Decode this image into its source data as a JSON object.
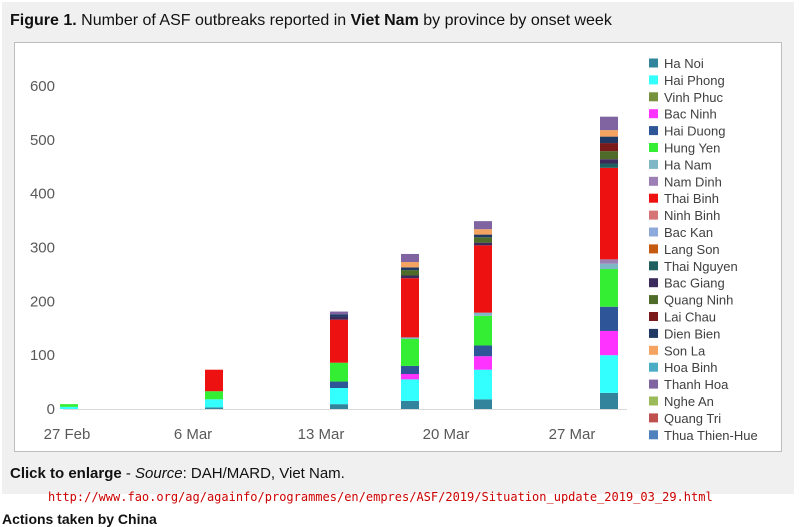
{
  "figure": {
    "label": "Figure 1.",
    "title_pre": "Number of ASF outbreaks reported in",
    "title_country": "Viet Nam",
    "title_post": "by province by onset week"
  },
  "caption": {
    "enlarge": "Click to enlarge",
    "dash": " - ",
    "source_label": "Source",
    "source_text": ": DAH/MARD, Viet Nam."
  },
  "url": "http://www.fao.org/ag/againfo/programmes/en/empres/ASF/2019/Situation_update_2019_03_29.html",
  "next_heading": "Actions taken by China",
  "chart_data": {
    "type": "bar",
    "stacked": true,
    "title": "",
    "xlabel": "",
    "ylabel": "",
    "ylim": [
      0,
      600
    ],
    "yticks": [
      "0",
      "100",
      "200",
      "300",
      "400",
      "500",
      "600"
    ],
    "xticks": [
      "27 Feb",
      "6 Mar",
      "13 Mar",
      "20 Mar",
      "27 Mar"
    ],
    "grid": false,
    "legend_position": "right",
    "categories": [
      "Week of 27 Feb",
      "Week of 6 Mar",
      "Week of 13 Mar",
      "Week of 20 Mar (a)",
      "Week of 20 Mar (b)",
      "Week of 27 Mar"
    ],
    "series": [
      {
        "name": "Ha Noi",
        "color": "#31849b",
        "values": [
          0,
          3,
          9,
          15,
          18,
          30
        ]
      },
      {
        "name": "Hai Phong",
        "color": "#33ffff",
        "values": [
          4,
          15,
          30,
          40,
          55,
          70
        ]
      },
      {
        "name": "Vinh Phuc",
        "color": "#76923c",
        "values": [
          0,
          0,
          0,
          0,
          0,
          0
        ]
      },
      {
        "name": "Bac Ninh",
        "color": "#ff33ff",
        "values": [
          0,
          0,
          0,
          10,
          25,
          45
        ]
      },
      {
        "name": "Hai Duong",
        "color": "#2e5597",
        "values": [
          0,
          0,
          12,
          15,
          20,
          45
        ]
      },
      {
        "name": "Hung Yen",
        "color": "#33ee33",
        "values": [
          5,
          15,
          35,
          50,
          55,
          70
        ]
      },
      {
        "name": "Ha Nam",
        "color": "#7fb7c7",
        "values": [
          0,
          0,
          0,
          3,
          6,
          10
        ]
      },
      {
        "name": "Nam Dinh",
        "color": "#9b7fb5",
        "values": [
          0,
          0,
          0,
          0,
          0,
          8
        ]
      },
      {
        "name": "Thai Binh",
        "color": "#ee1111",
        "values": [
          0,
          40,
          80,
          110,
          125,
          170
        ]
      },
      {
        "name": "Ninh Binh",
        "color": "#d67575",
        "values": [
          0,
          0,
          0,
          0,
          0,
          0
        ]
      },
      {
        "name": "Bac Kan",
        "color": "#8eaadb",
        "values": [
          0,
          0,
          0,
          0,
          0,
          0
        ]
      },
      {
        "name": "Lang Son",
        "color": "#c55a11",
        "values": [
          0,
          0,
          0,
          0,
          0,
          0
        ]
      },
      {
        "name": "Thai Nguyen",
        "color": "#1f5f5f",
        "values": [
          0,
          0,
          0,
          0,
          0,
          8
        ]
      },
      {
        "name": "Bac Giang",
        "color": "#3d2a5c",
        "values": [
          0,
          0,
          5,
          5,
          5,
          8
        ]
      },
      {
        "name": "Quang Ninh",
        "color": "#4e6b2a",
        "values": [
          0,
          0,
          0,
          10,
          10,
          15
        ]
      },
      {
        "name": "Lai Chau",
        "color": "#7b1a1a",
        "values": [
          0,
          0,
          0,
          0,
          0,
          15
        ]
      },
      {
        "name": "Dien Bien",
        "color": "#1f3864",
        "values": [
          0,
          0,
          5,
          5,
          5,
          12
        ]
      },
      {
        "name": "Son La",
        "color": "#f4a460",
        "values": [
          0,
          0,
          0,
          10,
          10,
          12
        ]
      },
      {
        "name": "Hoa Binh",
        "color": "#4bacc6",
        "values": [
          0,
          0,
          0,
          0,
          0,
          0
        ]
      },
      {
        "name": "Thanh Hoa",
        "color": "#8064a2",
        "values": [
          0,
          0,
          5,
          15,
          15,
          25
        ]
      },
      {
        "name": "Nghe An",
        "color": "#9bbb59",
        "values": [
          0,
          0,
          0,
          0,
          0,
          0
        ]
      },
      {
        "name": "Quang Tri",
        "color": "#c0504d",
        "values": [
          0,
          0,
          0,
          0,
          0,
          0
        ]
      },
      {
        "name": "Thua Thien-Hue",
        "color": "#4f81bd",
        "values": [
          0,
          0,
          0,
          0,
          0,
          0
        ]
      }
    ]
  }
}
